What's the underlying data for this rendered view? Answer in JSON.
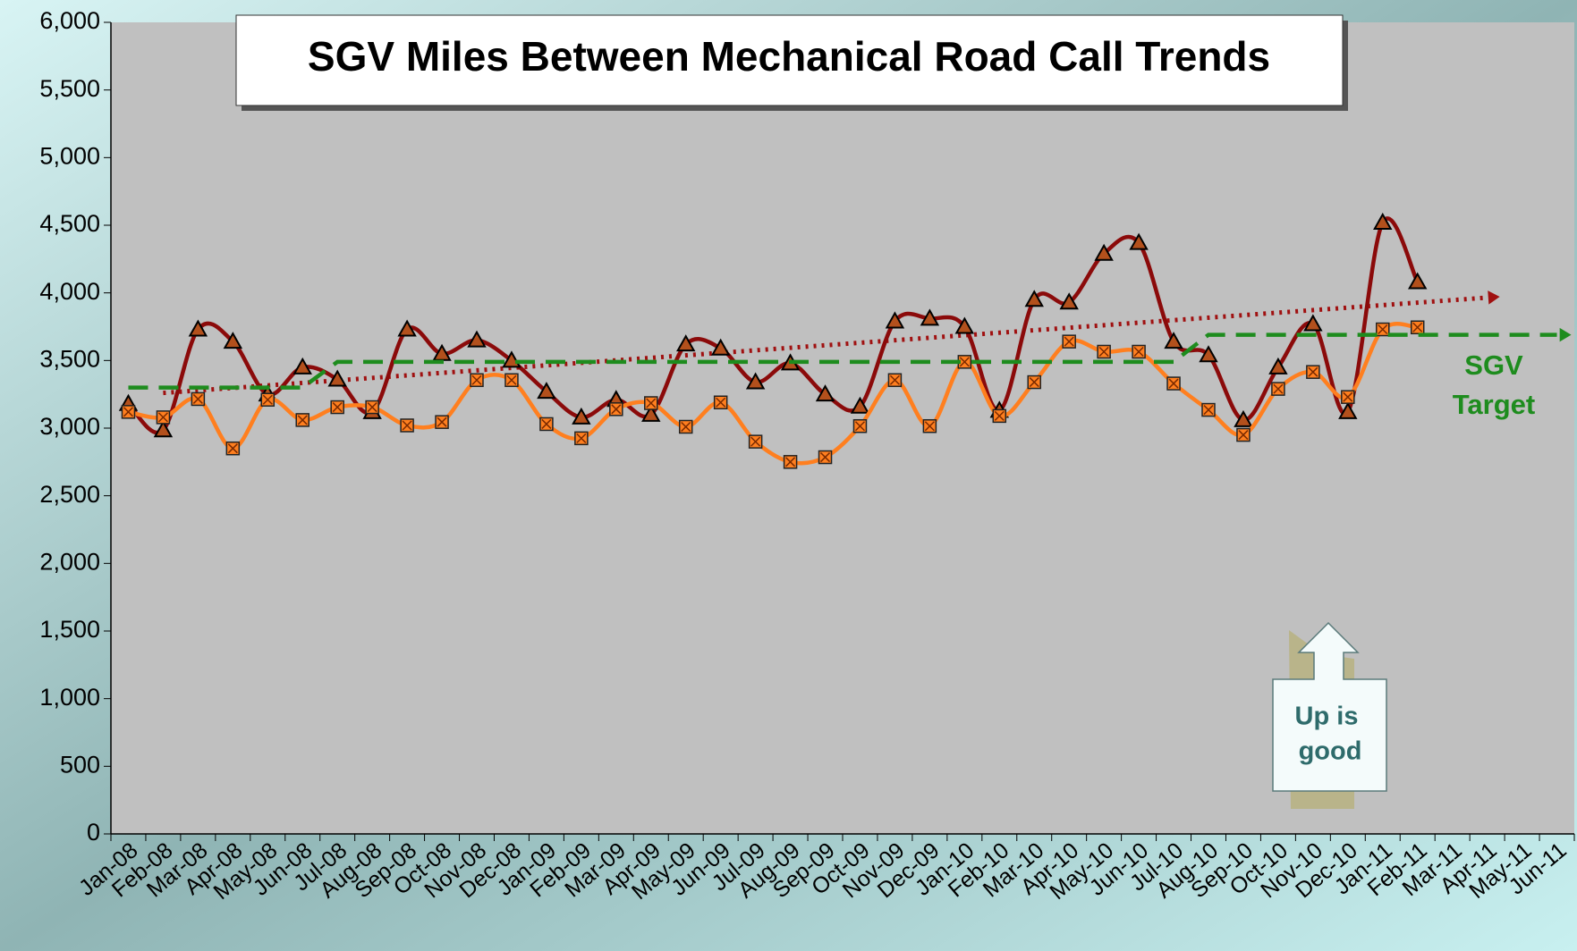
{
  "chart_data": {
    "type": "line",
    "title": "SGV Miles Between Mechanical Road Call Trends",
    "categories": [
      "Jan-08",
      "Feb-08",
      "Mar-08",
      "Apr-08",
      "May-08",
      "Jun-08",
      "Jul-08",
      "Aug-08",
      "Sep-08",
      "Oct-08",
      "Nov-08",
      "Dec-08",
      "Jan-09",
      "Feb-09",
      "Mar-09",
      "Apr-09",
      "May-09",
      "Jun-09",
      "Jul-09",
      "Aug-09",
      "Sep-09",
      "Oct-09",
      "Nov-09",
      "Dec-09",
      "Jan-10",
      "Feb-10",
      "Mar-10",
      "Apr-10",
      "May-10",
      "Jun-10",
      "Jul-10",
      "Aug-10",
      "Sep-10",
      "Oct-10",
      "Nov-10",
      "Dec-10",
      "Jan-11",
      "Feb-11",
      "Mar-11",
      "Apr-11",
      "May-11",
      "Jun-11"
    ],
    "series": [
      {
        "color": "#8b0a0a",
        "marker": "triangle",
        "values": [
          3180,
          2985,
          3730,
          3640,
          3250,
          3450,
          3360,
          3120,
          3730,
          3550,
          3650,
          3500,
          3270,
          3080,
          3210,
          3100,
          3620,
          3590,
          3340,
          3480,
          3250,
          3160,
          3790,
          3810,
          3750,
          3130,
          3950,
          3930,
          4290,
          4370,
          3640,
          3540,
          3060,
          3450,
          3770,
          3120,
          4520,
          4080,
          null,
          null,
          null,
          null
        ]
      },
      {
        "color": "#ff7f1f",
        "marker": "square-x",
        "values": [
          3120,
          3080,
          3215,
          2850,
          3210,
          3060,
          3155,
          3155,
          3020,
          3045,
          3355,
          3355,
          3030,
          2925,
          3140,
          3185,
          3010,
          3190,
          2900,
          2750,
          2785,
          3015,
          3355,
          3015,
          3490,
          3090,
          3340,
          3640,
          3565,
          3565,
          3330,
          3135,
          2950,
          3290,
          3415,
          3230,
          3730,
          3745,
          null,
          null,
          null,
          null
        ]
      },
      {
        "color": "#1e8c1e",
        "marker": "none",
        "dash": "dashed",
        "values": [
          3300,
          3300,
          3300,
          3300,
          3300,
          3300,
          3490,
          3490,
          3490,
          3490,
          3490,
          3490,
          3490,
          3490,
          3490,
          3490,
          3490,
          3490,
          3490,
          3490,
          3490,
          3490,
          3490,
          3490,
          3490,
          3490,
          3490,
          3490,
          3490,
          3490,
          3490,
          3690,
          3690,
          3690,
          3690,
          3690,
          3690,
          3690,
          3690,
          3690,
          3690,
          3690
        ]
      }
    ],
    "trendline": {
      "color": "#a01010",
      "start_category": "Feb-08",
      "start": 3260,
      "end_category": "Apr-11",
      "end": 3965
    },
    "annotations": {
      "target": [
        "SGV",
        "Target"
      ],
      "note": [
        "Up is",
        "good"
      ]
    },
    "ylim": [
      0,
      6000
    ],
    "yticks": [
      0,
      {
        "value": 500,
        "label": "500"
      },
      {
        "value": 1000,
        "label": "1,000"
      },
      {
        "value": 1500,
        "label": "1,500"
      },
      {
        "value": 2000,
        "label": "2,000"
      },
      {
        "value": 2500,
        "label": "2,500"
      },
      {
        "value": 3000,
        "label": "3,000"
      },
      {
        "value": 3500,
        "label": "3,500"
      },
      {
        "value": 4000,
        "label": "4,000"
      },
      {
        "value": 4500,
        "label": "4,500"
      },
      {
        "value": 5000,
        "label": "5,000"
      },
      {
        "value": 5500,
        "label": "5,500"
      },
      {
        "value": 6000,
        "label": "6,000"
      }
    ],
    "grid": false
  }
}
